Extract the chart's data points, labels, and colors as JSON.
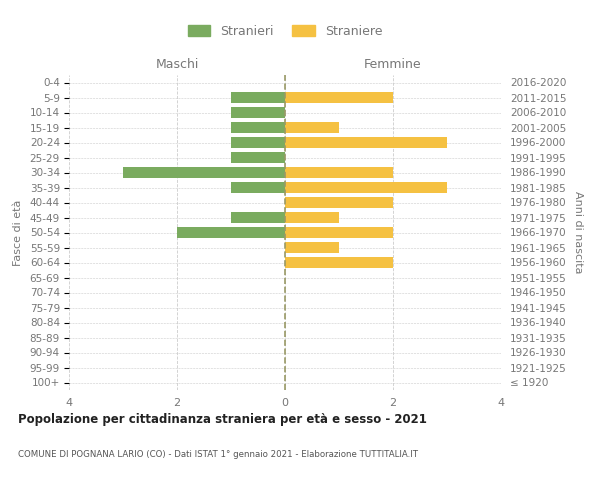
{
  "age_groups": [
    "100+",
    "95-99",
    "90-94",
    "85-89",
    "80-84",
    "75-79",
    "70-74",
    "65-69",
    "60-64",
    "55-59",
    "50-54",
    "45-49",
    "40-44",
    "35-39",
    "30-34",
    "25-29",
    "20-24",
    "15-19",
    "10-14",
    "5-9",
    "0-4"
  ],
  "birth_years": [
    "≤ 1920",
    "1921-1925",
    "1926-1930",
    "1931-1935",
    "1936-1940",
    "1941-1945",
    "1946-1950",
    "1951-1955",
    "1956-1960",
    "1961-1965",
    "1966-1970",
    "1971-1975",
    "1976-1980",
    "1981-1985",
    "1986-1990",
    "1991-1995",
    "1996-2000",
    "2001-2005",
    "2006-2010",
    "2011-2015",
    "2016-2020"
  ],
  "males": [
    0,
    0,
    0,
    0,
    0,
    0,
    0,
    0,
    0,
    0,
    2,
    1,
    0,
    1,
    3,
    1,
    1,
    1,
    1,
    1,
    0
  ],
  "females": [
    0,
    0,
    0,
    0,
    0,
    0,
    0,
    0,
    2,
    1,
    2,
    1,
    2,
    3,
    2,
    0,
    3,
    1,
    0,
    2,
    0
  ],
  "male_color": "#7aab5f",
  "female_color": "#f5c142",
  "legend_male": "Stranieri",
  "legend_female": "Straniere",
  "xlabel_left": "Maschi",
  "xlabel_right": "Femmine",
  "ylabel_left": "Fasce di età",
  "ylabel_right": "Anni di nascita",
  "xlim": 4,
  "title": "Popolazione per cittadinanza straniera per età e sesso - 2021",
  "subtitle": "COMUNE DI POGNANA LARIO (CO) - Dati ISTAT 1° gennaio 2021 - Elaborazione TUTTITALIA.IT",
  "bg_color": "#ffffff",
  "grid_color": "#cccccc",
  "center_line_color": "#999966",
  "bar_height": 0.75,
  "label_color": "#777777",
  "title_color": "#222222",
  "subtitle_color": "#555555"
}
